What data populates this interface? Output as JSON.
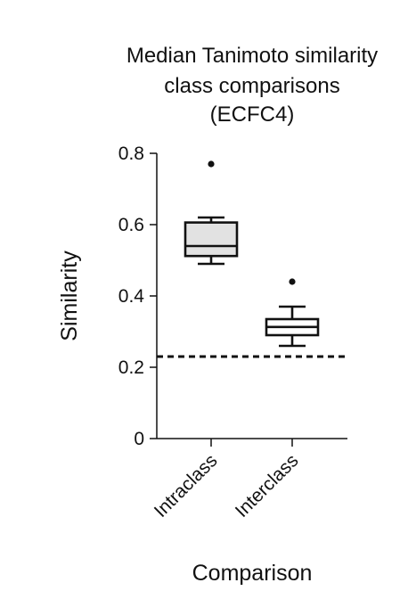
{
  "chart_data": {
    "type": "box",
    "title_lines": [
      "Median Tanimoto similarity",
      "class comparisons",
      "(ECFC4)"
    ],
    "xlabel": "Comparison",
    "ylabel": "Similarity",
    "ylim": [
      0,
      0.8
    ],
    "yticks": [
      0,
      0.2,
      0.4,
      0.6,
      0.8
    ],
    "ytick_labels": [
      "0",
      "0.2",
      "0.4",
      "0.6",
      "0.8"
    ],
    "categories": [
      "Intraclass",
      "Interclass"
    ],
    "boxes": [
      {
        "category": "Intraclass",
        "whisker_low": 0.49,
        "q1": 0.512,
        "median": 0.54,
        "q3": 0.606,
        "whisker_high": 0.62,
        "outliers": [
          0.77
        ],
        "fill": "#e2e2e2"
      },
      {
        "category": "Interclass",
        "whisker_low": 0.26,
        "q1": 0.29,
        "median": 0.313,
        "q3": 0.335,
        "whisker_high": 0.37,
        "outliers": [
          0.44
        ],
        "fill": "#ffffff"
      }
    ],
    "reference_line": {
      "y": 0.23,
      "style": "dashed"
    },
    "grid": false
  }
}
